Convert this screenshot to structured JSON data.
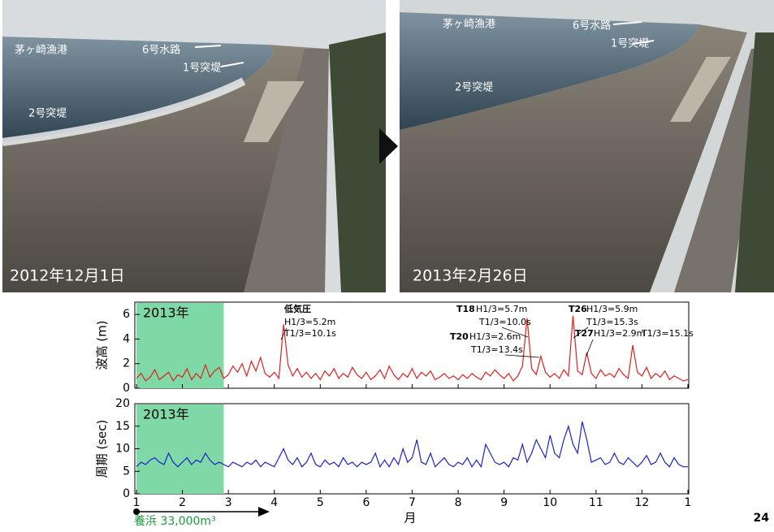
{
  "photos": [
    {
      "caption": "2012年12月1日",
      "labels": [
        "茅ヶ崎漁港",
        "6号水路",
        "1号突堤",
        "2号突堤"
      ]
    },
    {
      "caption": "2013年2月26日",
      "labels": [
        "茅ヶ崎漁港",
        "6号水路",
        "1号突堤",
        "2号突堤"
      ]
    }
  ],
  "nourishment_label": "養浜 33,000m³",
  "page_number": "24",
  "chart_data": [
    {
      "type": "line",
      "ylabel": "波高 (m)",
      "xlabel": "月",
      "highlight": {
        "range": [
          1,
          2.9
        ],
        "label": "2013年",
        "color": "#7fd9a6"
      },
      "annotations": [
        "低気圧",
        "H1/3=5.2m",
        "T1/3=10.1s",
        "T18",
        "H1/3=5.7m",
        "T1/3=10.0s",
        "T20",
        "H1/3=2.6m",
        "T1/3=13.4s",
        "T26",
        "H1/3=5.9m",
        "T1/3=15.3s",
        "T27",
        "H1/3=2.9m",
        "T1/3=15.1s"
      ],
      "xlim": [
        1,
        13
      ],
      "ylim": [
        0,
        7
      ],
      "yticks": [
        0,
        2,
        4,
        6
      ],
      "xticks": [
        1,
        2,
        3,
        4,
        5,
        6,
        7,
        8,
        9,
        10,
        11,
        12,
        {
          "value": 13,
          "label": "1"
        }
      ],
      "x": [
        1.0,
        1.1,
        1.2,
        1.3,
        1.4,
        1.5,
        1.6,
        1.7,
        1.8,
        1.9,
        2.0,
        2.1,
        2.2,
        2.3,
        2.4,
        2.5,
        2.6,
        2.7,
        2.8,
        2.9,
        3.0,
        3.1,
        3.2,
        3.3,
        3.4,
        3.5,
        3.6,
        3.7,
        3.8,
        3.9,
        4.0,
        4.1,
        4.2,
        4.3,
        4.4,
        4.5,
        4.6,
        4.7,
        4.8,
        4.9,
        5.0,
        5.1,
        5.2,
        5.3,
        5.4,
        5.5,
        5.6,
        5.7,
        5.8,
        5.9,
        6.0,
        6.1,
        6.2,
        6.3,
        6.4,
        6.5,
        6.6,
        6.7,
        6.8,
        6.9,
        7.0,
        7.1,
        7.2,
        7.3,
        7.4,
        7.5,
        7.6,
        7.7,
        7.8,
        7.9,
        8.0,
        8.1,
        8.2,
        8.3,
        8.4,
        8.5,
        8.6,
        8.7,
        8.8,
        8.9,
        9.0,
        9.1,
        9.2,
        9.3,
        9.4,
        9.5,
        9.6,
        9.7,
        9.8,
        9.9,
        10.0,
        10.1,
        10.2,
        10.3,
        10.4,
        10.5,
        10.6,
        10.7,
        10.8,
        10.9,
        11.0,
        11.1,
        11.2,
        11.3,
        11.4,
        11.5,
        11.6,
        11.7,
        11.8,
        11.9,
        12.0,
        12.1,
        12.2,
        12.3,
        12.4,
        12.5,
        12.6,
        12.7,
        12.8,
        12.9,
        13.0
      ],
      "series": [
        {
          "name": "波高",
          "color": "#e0201c",
          "values": [
            0.8,
            1.2,
            0.6,
            0.9,
            1.5,
            0.7,
            1.0,
            1.3,
            0.6,
            1.1,
            0.9,
            1.6,
            0.7,
            1.2,
            0.8,
            1.9,
            0.9,
            1.4,
            1.7,
            0.8,
            1.1,
            1.8,
            1.3,
            2.0,
            1.0,
            2.2,
            1.4,
            2.5,
            1.2,
            0.9,
            1.3,
            0.8,
            5.2,
            1.9,
            1.0,
            1.6,
            0.9,
            1.3,
            0.8,
            1.2,
            0.7,
            1.4,
            1.0,
            1.6,
            0.8,
            1.2,
            0.9,
            1.7,
            1.1,
            0.8,
            1.3,
            0.7,
            1.0,
            1.5,
            0.8,
            1.8,
            1.1,
            0.7,
            1.2,
            0.9,
            1.6,
            0.8,
            1.3,
            1.0,
            1.4,
            0.7,
            0.9,
            1.2,
            0.8,
            1.0,
            0.7,
            1.1,
            0.8,
            1.2,
            0.9,
            0.7,
            1.3,
            1.0,
            1.5,
            1.1,
            0.8,
            1.2,
            0.6,
            1.0,
            1.8,
            5.7,
            1.6,
            1.1,
            2.6,
            1.3,
            0.9,
            1.2,
            0.8,
            1.5,
            1.0,
            5.9,
            1.4,
            1.1,
            2.9,
            1.2,
            0.8,
            1.5,
            1.0,
            1.2,
            0.9,
            1.6,
            1.1,
            0.8,
            3.5,
            1.3,
            1.0,
            1.7,
            0.8,
            1.2,
            0.9,
            1.4,
            0.7,
            1.0,
            0.8,
            0.6,
            0.7
          ]
        }
      ]
    },
    {
      "type": "line",
      "ylabel": "周期 (sec)",
      "xlabel": "月",
      "highlight": {
        "range": [
          1,
          2.9
        ],
        "label": "2013年",
        "color": "#7fd9a6"
      },
      "xlim": [
        1,
        13
      ],
      "ylim": [
        0,
        20
      ],
      "yticks": [
        0,
        5,
        10,
        15,
        20
      ],
      "xticks": [
        1,
        2,
        3,
        4,
        5,
        6,
        7,
        8,
        9,
        10,
        11,
        12,
        {
          "value": 13,
          "label": "1"
        }
      ],
      "x": [
        1.0,
        1.1,
        1.2,
        1.3,
        1.4,
        1.5,
        1.6,
        1.7,
        1.8,
        1.9,
        2.0,
        2.1,
        2.2,
        2.3,
        2.4,
        2.5,
        2.6,
        2.7,
        2.8,
        2.9,
        3.0,
        3.1,
        3.2,
        3.3,
        3.4,
        3.5,
        3.6,
        3.7,
        3.8,
        3.9,
        4.0,
        4.1,
        4.2,
        4.3,
        4.4,
        4.5,
        4.6,
        4.7,
        4.8,
        4.9,
        5.0,
        5.1,
        5.2,
        5.3,
        5.4,
        5.5,
        5.6,
        5.7,
        5.8,
        5.9,
        6.0,
        6.1,
        6.2,
        6.3,
        6.4,
        6.5,
        6.6,
        6.7,
        6.8,
        6.9,
        7.0,
        7.1,
        7.2,
        7.3,
        7.4,
        7.5,
        7.6,
        7.7,
        7.8,
        7.9,
        8.0,
        8.1,
        8.2,
        8.3,
        8.4,
        8.5,
        8.6,
        8.7,
        8.8,
        8.9,
        9.0,
        9.1,
        9.2,
        9.3,
        9.4,
        9.5,
        9.6,
        9.7,
        9.8,
        9.9,
        10.0,
        10.1,
        10.2,
        10.3,
        10.4,
        10.5,
        10.6,
        10.7,
        10.8,
        10.9,
        11.0,
        11.1,
        11.2,
        11.3,
        11.4,
        11.5,
        11.6,
        11.7,
        11.8,
        11.9,
        12.0,
        12.1,
        12.2,
        12.3,
        12.4,
        12.5,
        12.6,
        12.7,
        12.8,
        12.9,
        13.0
      ],
      "series": [
        {
          "name": "周期",
          "color": "#1a22c8",
          "values": [
            6,
            7,
            6.5,
            7.5,
            8,
            7,
            6.5,
            9,
            7,
            6,
            7,
            8,
            6.5,
            7.5,
            7,
            9,
            7.5,
            6.5,
            7,
            6.5,
            6,
            7,
            6.5,
            6,
            7,
            6.5,
            7.5,
            6,
            7,
            6.5,
            6,
            8,
            10,
            7.5,
            6.5,
            8,
            6,
            7,
            9,
            6.5,
            6,
            7.5,
            6.5,
            7,
            6,
            8,
            6.5,
            7,
            6,
            7,
            6.5,
            7,
            9,
            6,
            7.5,
            6,
            8,
            6.5,
            10,
            7,
            8,
            12,
            7,
            6.5,
            9,
            6,
            7,
            8,
            6.5,
            6,
            7,
            6.5,
            8,
            6,
            7.5,
            6,
            11,
            9,
            7,
            6.5,
            7,
            6,
            8,
            7.5,
            11,
            7,
            9,
            12,
            10,
            8,
            13,
            9,
            8,
            12,
            15,
            11,
            9,
            16,
            12,
            7,
            7.5,
            8,
            6.5,
            7,
            9,
            7,
            6.5,
            8,
            7,
            6,
            7,
            8.5,
            6.5,
            7,
            9,
            7,
            6,
            8,
            6.5,
            6,
            6
          ]
        }
      ]
    }
  ]
}
